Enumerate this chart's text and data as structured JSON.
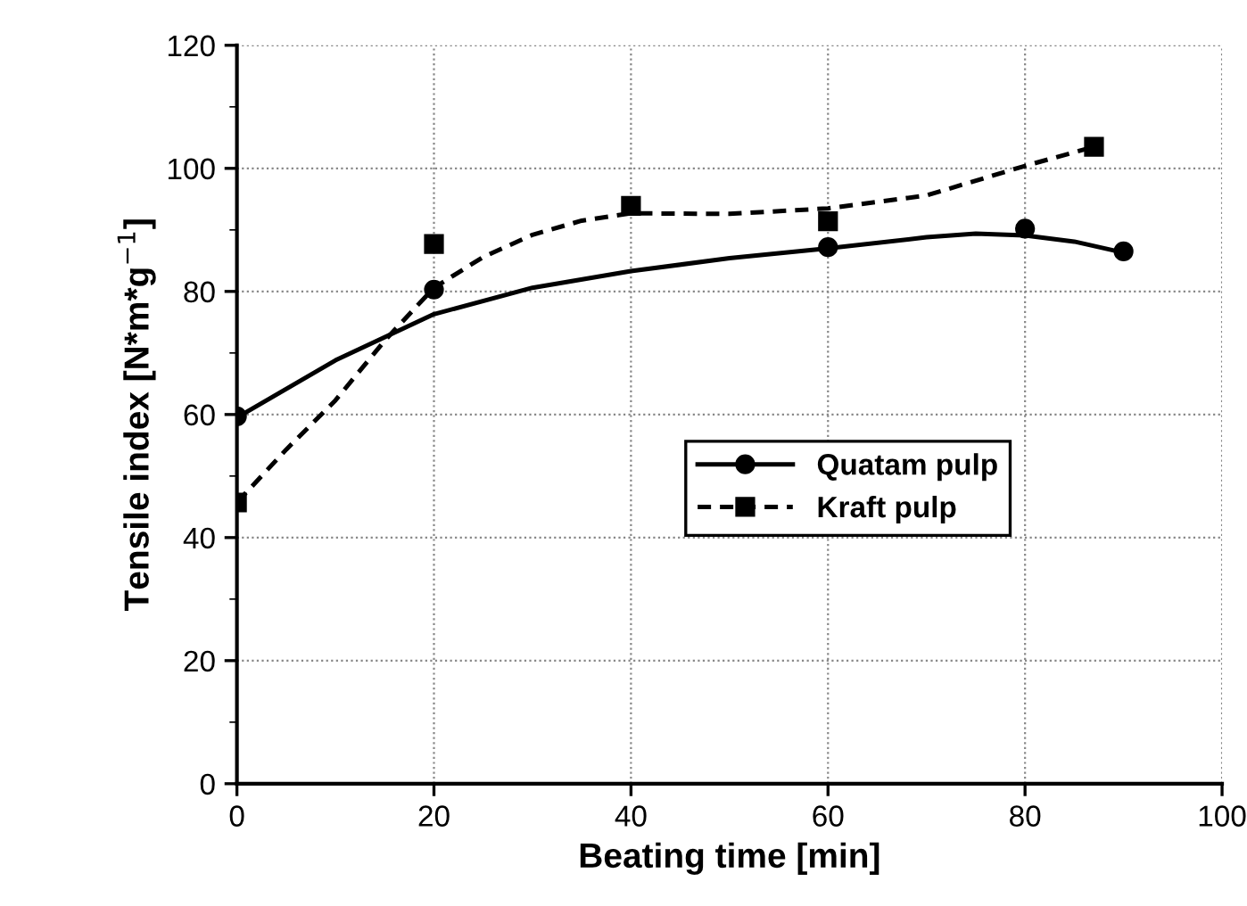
{
  "chart_data": {
    "type": "scatter",
    "xlabel": "Beating time [min]",
    "ylabel": "Tensile index [N*m*g$^{−1}$]",
    "xlim": [
      0,
      100
    ],
    "xticks": [
      0,
      20,
      40,
      60,
      80,
      100
    ],
    "ylim": [
      0,
      120
    ],
    "yticks": [
      0,
      {
        "value": 10,
        "label": null
      },
      20,
      {
        "value": 30,
        "label": null
      },
      40,
      {
        "value": 50,
        "label": null
      },
      60,
      {
        "value": 70,
        "label": null
      },
      80,
      {
        "value": 90,
        "label": null
      },
      100,
      {
        "value": 110,
        "label": null
      },
      120
    ],
    "grid": true,
    "legend": "center right",
    "series": [
      {
        "name": "Quatam pulp",
        "marker": "circle",
        "color": "#000000",
        "x": [
          0,
          20,
          60,
          80,
          90
        ],
        "values": [
          59.7,
          80.3,
          87.2,
          90.2,
          86.5
        ]
      },
      {
        "name": "Kraft pulp",
        "marker": "square",
        "color": "#000000",
        "x": [
          0,
          20,
          40,
          60,
          87
        ],
        "values": [
          45.7,
          87.7,
          93.9,
          91.4,
          103.5
        ]
      },
      {
        "type": "line",
        "line_style": "solid",
        "color": "#000000",
        "x": [
          0,
          10,
          20,
          30,
          40,
          50,
          60,
          70,
          75,
          80,
          85,
          90
        ],
        "values": [
          59.5,
          68.8,
          76.3,
          80.6,
          83.3,
          85.4,
          87.0,
          88.8,
          89.4,
          89.1,
          88.1,
          86.3
        ]
      },
      {
        "type": "line",
        "line_style": "dashed",
        "color": "#000000",
        "x": [
          0,
          5,
          10,
          15,
          20,
          25,
          30,
          35,
          40,
          50,
          60,
          70,
          80,
          87
        ],
        "values": [
          45.7,
          54.3,
          62.3,
          72.0,
          80.6,
          85.6,
          89.2,
          91.5,
          92.7,
          92.6,
          93.5,
          95.6,
          100.4,
          103.5
        ]
      }
    ]
  }
}
